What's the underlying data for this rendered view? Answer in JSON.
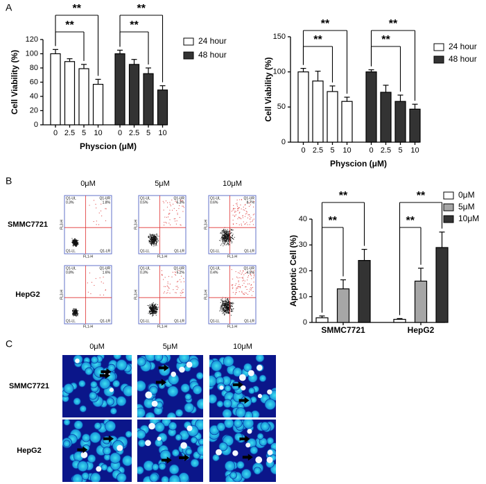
{
  "panel_labels": [
    "A",
    "B",
    "C"
  ],
  "chart_data": [
    {
      "type": "bar",
      "layout": "series-blocks",
      "y_label": "Cell Viability (%)",
      "x_label": "Physcion (μM)",
      "categories": [
        "0",
        "2.5",
        "5",
        "10"
      ],
      "series": [
        {
          "name": "24 hour",
          "color": "#ffffff",
          "values": [
            100,
            89,
            79,
            57
          ],
          "errors": [
            6,
            4,
            6,
            7
          ]
        },
        {
          "name": "48 hour",
          "color": "#333333",
          "values": [
            100,
            85,
            72,
            49
          ],
          "errors": [
            5,
            7,
            8,
            6
          ]
        }
      ],
      "ylim": [
        0,
        120
      ],
      "yticks": [
        0,
        20,
        40,
        60,
        80,
        100,
        120
      ],
      "legend": "right",
      "comparisons": [
        {
          "label": "**",
          "series": 0,
          "categories": [
            0,
            3
          ]
        },
        {
          "label": "**",
          "series": 0,
          "categories": [
            0,
            2
          ]
        },
        {
          "label": "**",
          "series": 1,
          "categories": [
            0,
            3
          ]
        },
        {
          "label": "**",
          "series": 1,
          "categories": [
            0,
            2
          ]
        }
      ]
    },
    {
      "type": "bar",
      "layout": "series-blocks",
      "y_label": "Cell Viability (%)",
      "x_label": "Physcion (μM)",
      "categories": [
        "0",
        "2.5",
        "5",
        "10"
      ],
      "series": [
        {
          "name": "24 hour",
          "color": "#ffffff",
          "values": [
            100,
            87,
            72,
            58
          ],
          "errors": [
            5,
            14,
            8,
            6
          ]
        },
        {
          "name": "48 hour",
          "color": "#333333",
          "values": [
            100,
            71,
            58,
            47
          ],
          "errors": [
            3,
            10,
            9,
            7
          ]
        }
      ],
      "ylim": [
        0,
        150
      ],
      "yticks": [
        0,
        50,
        100,
        150
      ],
      "legend": "right",
      "comparisons": [
        {
          "label": "**",
          "series": 0,
          "categories": [
            0,
            3
          ]
        },
        {
          "label": "**",
          "series": 0,
          "categories": [
            0,
            2
          ]
        },
        {
          "label": "**",
          "series": 1,
          "categories": [
            0,
            3
          ]
        },
        {
          "label": "**",
          "series": 1,
          "categories": [
            0,
            2
          ]
        }
      ]
    },
    {
      "type": "bar",
      "layout": "grouped",
      "y_label": "Apoptotic Cell (%)",
      "categories": [
        "SMMC7721",
        "HepG2"
      ],
      "series": [
        {
          "name": "0μM",
          "color": "#ffffff",
          "values": [
            1.8,
            1.2
          ],
          "errors": [
            0.7,
            0.3
          ]
        },
        {
          "name": "5μM",
          "color": "#a6a6a6",
          "values": [
            13,
            16
          ],
          "errors": [
            3.5,
            5
          ]
        },
        {
          "name": "10μM",
          "color": "#333333",
          "values": [
            24,
            29
          ],
          "errors": [
            4.3,
            6
          ]
        }
      ],
      "ylim": [
        0,
        40
      ],
      "yticks": [
        0,
        10,
        20,
        30,
        40
      ],
      "legend": "right",
      "comparisons": [
        {
          "label": "**",
          "category": 0,
          "series": [
            0,
            2
          ]
        },
        {
          "label": "**",
          "category": 0,
          "series": [
            0,
            1
          ]
        },
        {
          "label": "**",
          "category": 1,
          "series": [
            0,
            2
          ]
        },
        {
          "label": "**",
          "category": 1,
          "series": [
            0,
            1
          ]
        }
      ]
    }
  ],
  "flow_cytometry": {
    "columns": [
      "0μM",
      "5μM",
      "10μM"
    ],
    "rows": [
      "SMMC7721",
      "HepG2"
    ],
    "x_label": "FL1-H",
    "y_label": "FL3-H",
    "quadrants": [
      "Q1-UL",
      "Q1-UR",
      "Q1-LL",
      "Q1-LR"
    ],
    "plots": [
      [
        {
          "percents": [
            "0.3%",
            "1.8%"
          ]
        },
        {
          "percents": [
            "0.5%",
            "5.3%"
          ]
        },
        {
          "percents": [
            "0.6%",
            "8.7%"
          ]
        }
      ],
      [
        {
          "percents": [
            "0.8%",
            "1.6%"
          ]
        },
        {
          "percents": [
            "0.3%",
            "5.2%"
          ]
        },
        {
          "percents": [
            "0.4%",
            "4.5%"
          ]
        }
      ]
    ]
  },
  "microscopy": {
    "columns": [
      "0μM",
      "5μM",
      "10μM"
    ],
    "rows": [
      "SMMC7721",
      "HepG2"
    ]
  }
}
